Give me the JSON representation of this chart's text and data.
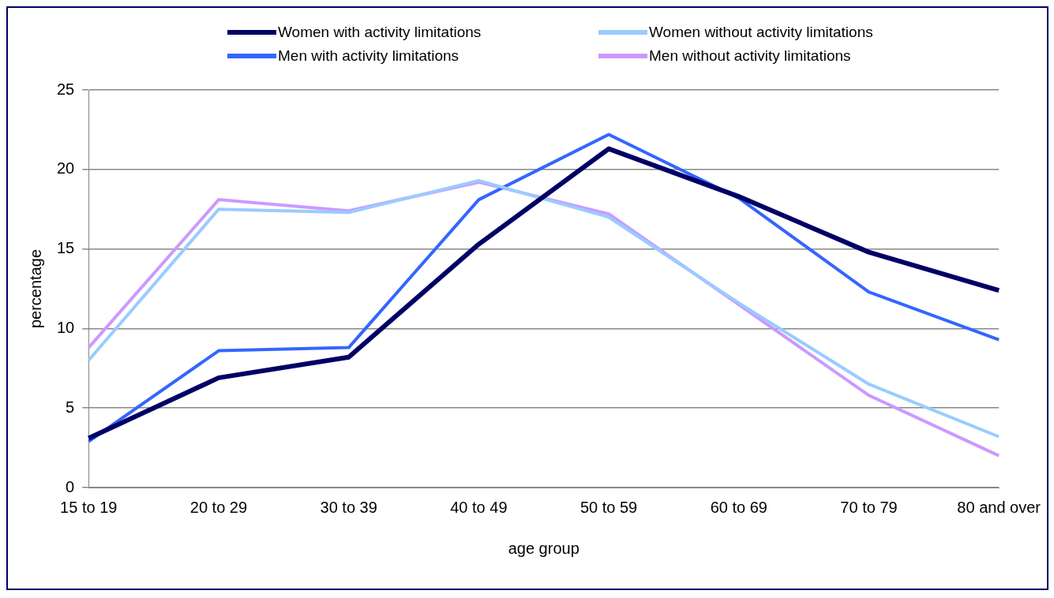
{
  "chart_data": {
    "type": "line",
    "xlabel": "age group",
    "ylabel": "percentage",
    "categories": [
      "15 to 19",
      "20 to 29",
      "30 to 39",
      "40 to 49",
      "50 to 59",
      "60 to 69",
      "70 to 79",
      "80 and over"
    ],
    "series": [
      {
        "name": "Women with activity limitations",
        "color": "#000066",
        "values": [
          3.1,
          6.9,
          8.2,
          15.3,
          21.3,
          18.3,
          14.8,
          12.4
        ]
      },
      {
        "name": "Women without activity limitations",
        "color": "#99ccff",
        "values": [
          8.0,
          17.5,
          17.3,
          19.3,
          17.0,
          11.6,
          6.5,
          3.2
        ]
      },
      {
        "name": "Men with activity limitations",
        "color": "#3366ff",
        "values": [
          2.9,
          8.6,
          8.8,
          18.1,
          22.2,
          18.2,
          12.3,
          9.3
        ]
      },
      {
        "name": "Men without activity limitations",
        "color": "#cc99ff",
        "values": [
          8.8,
          18.1,
          17.4,
          19.2,
          17.2,
          11.5,
          5.8,
          2.0
        ]
      }
    ],
    "ylim": [
      0,
      25
    ],
    "yticks": [
      0,
      5,
      10,
      15,
      20,
      25
    ],
    "grid": "y",
    "legend": "top",
    "marker": "none",
    "line_style": "solid"
  }
}
